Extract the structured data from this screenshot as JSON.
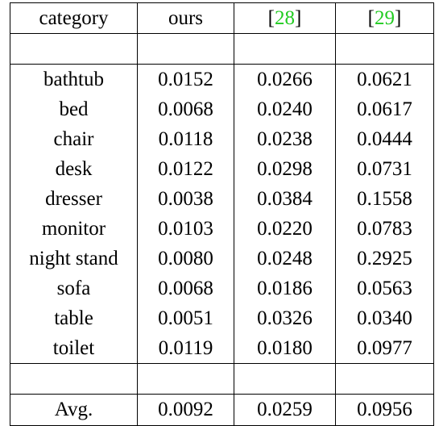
{
  "table": {
    "headers": {
      "category": "category",
      "ours": "ours",
      "ref1_open": "[",
      "ref1_num": "28",
      "ref1_close": "]",
      "ref2_open": "[",
      "ref2_num": "29",
      "ref2_close": "]"
    },
    "cite_color": "#22cc22",
    "rows": [
      {
        "category": "bathtub",
        "ours": "0.0152",
        "ref1": "0.0266",
        "ref2": "0.0621"
      },
      {
        "category": "bed",
        "ours": "0.0068",
        "ref1": "0.0240",
        "ref2": "0.0617"
      },
      {
        "category": "chair",
        "ours": "0.0118",
        "ref1": "0.0238",
        "ref2": "0.0444"
      },
      {
        "category": "desk",
        "ours": "0.0122",
        "ref1": "0.0298",
        "ref2": "0.0731"
      },
      {
        "category": "dresser",
        "ours": "0.0038",
        "ref1": "0.0384",
        "ref2": "0.1558"
      },
      {
        "category": "monitor",
        "ours": "0.0103",
        "ref1": "0.0220",
        "ref2": "0.0783"
      },
      {
        "category": "night stand",
        "ours": "0.0080",
        "ref1": "0.0248",
        "ref2": "0.2925"
      },
      {
        "category": "sofa",
        "ours": "0.0068",
        "ref1": "0.0186",
        "ref2": "0.0563"
      },
      {
        "category": "table",
        "ours": "0.0051",
        "ref1": "0.0326",
        "ref2": "0.0340"
      },
      {
        "category": "toilet",
        "ours": "0.0119",
        "ref1": "0.0180",
        "ref2": "0.0977"
      }
    ],
    "average": {
      "category": "Avg.",
      "ours": "0.0092",
      "ref1": "0.0259",
      "ref2": "0.0956"
    }
  }
}
